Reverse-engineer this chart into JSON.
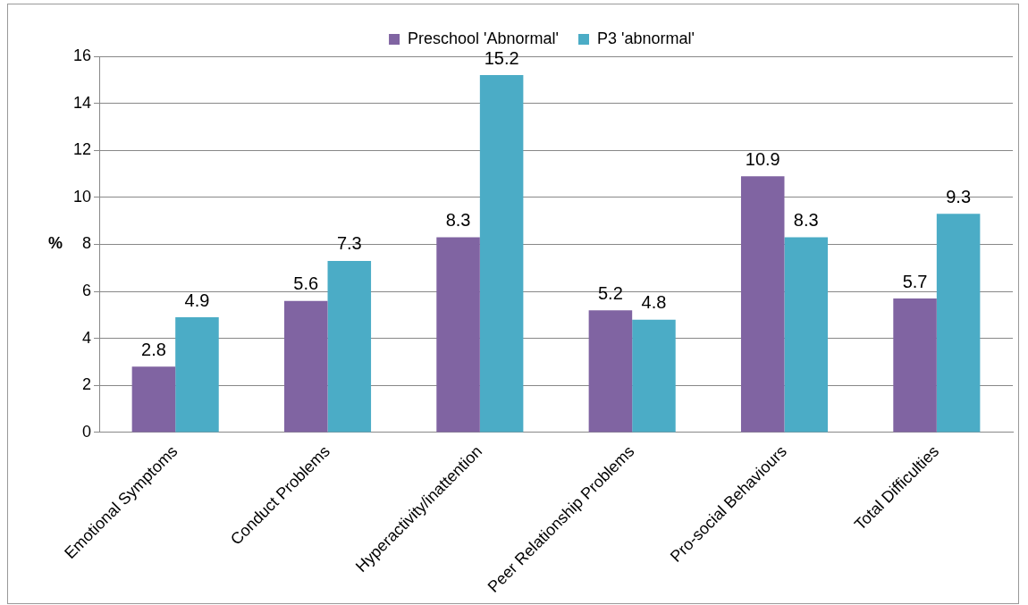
{
  "chart_data": {
    "type": "bar",
    "ylabel": "%",
    "categories": [
      "Emotional Symptoms",
      "Conduct Problems",
      "Hyperactivity/inattention",
      "Peer Relationship Problems",
      "Pro-social Behaviours",
      "Total Difficulties"
    ],
    "series": [
      {
        "name": "Preschool 'Abnormal'",
        "color": "#8064a2",
        "values": [
          2.8,
          5.6,
          8.3,
          5.2,
          10.9,
          5.7
        ]
      },
      {
        "name": "P3 'abnormal'",
        "color": "#4bacc6",
        "values": [
          4.9,
          7.3,
          15.2,
          4.8,
          8.3,
          9.3
        ]
      }
    ],
    "ylim": [
      0,
      16
    ],
    "yticks": [
      0,
      2,
      4,
      6,
      8,
      10,
      12,
      14,
      16
    ],
    "grid": "y",
    "legend": "top",
    "data_labels": true
  }
}
